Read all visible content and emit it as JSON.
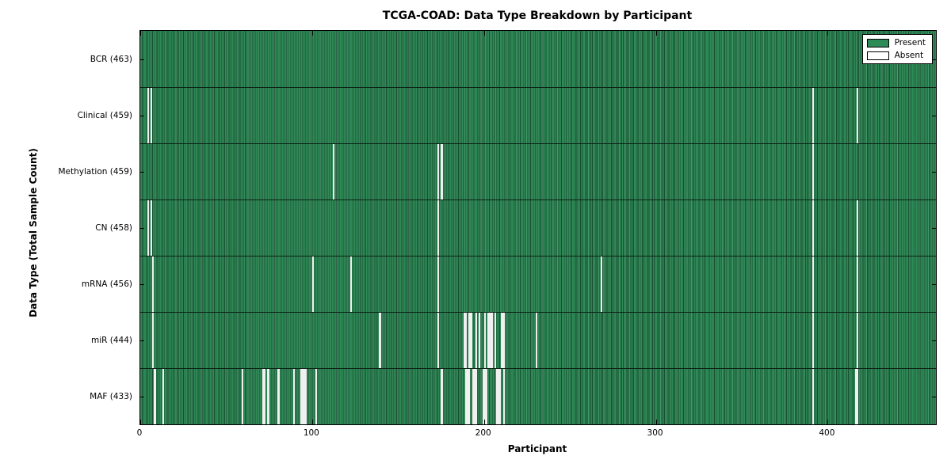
{
  "title": "TCGA-COAD: Data Type Breakdown by Participant",
  "chart_data": {
    "type": "heatmap",
    "title": "TCGA-COAD: Data Type Breakdown by Participant",
    "xlabel": "Participant",
    "ylabel": "Data Type (Total Sample Count)",
    "n_participants": 463,
    "x_range": [
      0,
      463
    ],
    "xticks": [
      0,
      100,
      200,
      300,
      400
    ],
    "xtick_labels": [
      "0",
      "100",
      "200",
      "300",
      "400"
    ],
    "grid": false,
    "legend": {
      "position": "upper-right",
      "items": [
        {
          "label": "Present",
          "color": "#2e8b57"
        },
        {
          "label": "Absent",
          "color": "#ffffff"
        }
      ]
    },
    "colors": {
      "present": "#2e8b57",
      "present_edge": "#184f31",
      "absent_stripe": "#f0f0f0",
      "spine": "#000000"
    },
    "rows": [
      {
        "name": "BCR",
        "label": "BCR (463)",
        "total": 463,
        "absent": []
      },
      {
        "name": "Clinical",
        "label": "Clinical (459)",
        "total": 459,
        "absent": [
          4,
          6,
          391,
          417
        ]
      },
      {
        "name": "Methylation",
        "label": "Methylation (459)",
        "total": 459,
        "absent": [
          112,
          173,
          175,
          391
        ]
      },
      {
        "name": "CN",
        "label": "CN (458)",
        "total": 458,
        "absent": [
          4,
          6,
          173,
          391,
          417
        ]
      },
      {
        "name": "mRNA",
        "label": "mRNA (456)",
        "total": 456,
        "absent": [
          7,
          100,
          122,
          173,
          268,
          391,
          417
        ]
      },
      {
        "name": "miR",
        "label": "miR (444)",
        "total": 444,
        "absent": [
          7,
          139,
          173,
          188,
          189,
          191,
          192,
          195,
          197,
          200,
          202,
          203,
          204,
          206,
          210,
          211,
          230,
          391,
          417
        ]
      },
      {
        "name": "MAF",
        "label": "MAF (433)",
        "total": 433,
        "absent": [
          8,
          13,
          59,
          71,
          72,
          74,
          80,
          89,
          93,
          94,
          95,
          96,
          102,
          175,
          189,
          190,
          191,
          193,
          194,
          195,
          199,
          200,
          201,
          207,
          208,
          209,
          211,
          391,
          416,
          417
        ]
      }
    ]
  }
}
